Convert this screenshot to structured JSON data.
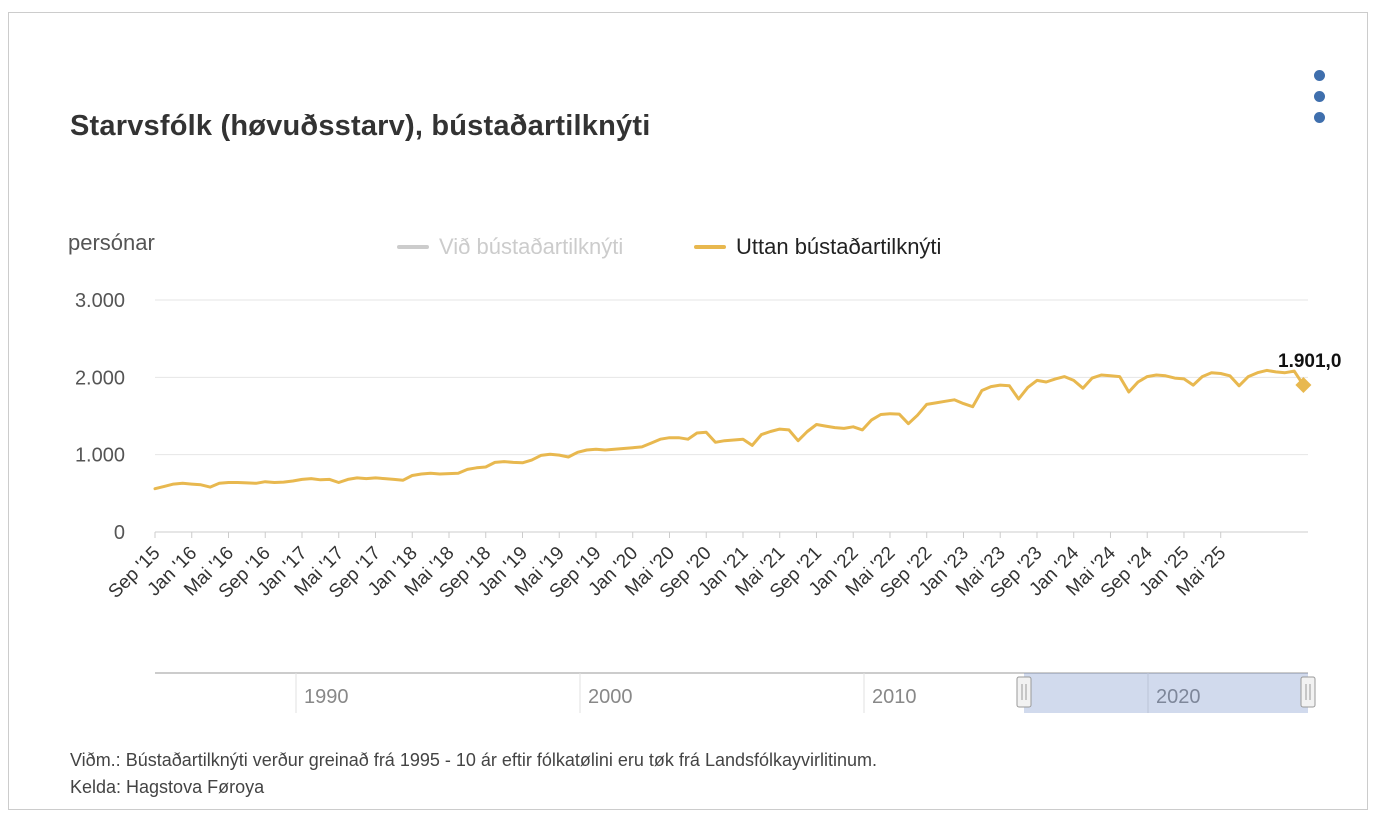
{
  "chart": {
    "title": "Starvsfólk (høvuðsstarv), bústaðartilknýti",
    "y_unit": "persónar",
    "menu_icon": "kebab-menu-icon",
    "legend": [
      {
        "name": "Við bústaðartilknýti",
        "visible": false,
        "color": "#cccccc"
      },
      {
        "name": "Uttan bústaðartilknýti",
        "visible": true,
        "color": "#e8b84f"
      }
    ],
    "last_value_label": "1.901,0",
    "navigator": {
      "decade_labels": [
        "1990",
        "2000",
        "2010",
        "2020"
      ],
      "selection": {
        "from": "Sep '15",
        "to": "Sep '25"
      }
    }
  },
  "chart_data": {
    "type": "line",
    "title": "Starvsfólk (høvuðsstarv), bústaðartilknýti",
    "ylabel": "persónar",
    "ylim": [
      0,
      3000
    ],
    "yticks": [
      0,
      1000,
      2000,
      3000
    ],
    "ytick_labels": [
      "0",
      "1.000",
      "2.000",
      "3.000"
    ],
    "grid": true,
    "legend_placement": "top-center",
    "x_start": "Sep '15",
    "x_tick_labels": [
      "Sep '15",
      "Jan '16",
      "Mai '16",
      "Sep '16",
      "Jan '17",
      "Mai '17",
      "Sep '17",
      "Jan '18",
      "Mai '18",
      "Sep '18",
      "Jan '19",
      "Mai '19",
      "Sep '19",
      "Jan '20",
      "Mai '20",
      "Sep '20",
      "Jan '21",
      "Mai '21",
      "Sep '21",
      "Jan '22",
      "Mai '22",
      "Sep '22",
      "Jan '23",
      "Mai '23",
      "Sep '23",
      "Jan '24",
      "Mai '24",
      "Sep '24",
      "Jan '25",
      "Mai '25"
    ],
    "series": [
      {
        "name": "Uttan bústaðartilknýti",
        "color": "#e8b84f",
        "values": [
          560,
          590,
          620,
          630,
          620,
          610,
          580,
          630,
          640,
          640,
          635,
          630,
          650,
          640,
          645,
          660,
          680,
          690,
          675,
          680,
          640,
          680,
          700,
          690,
          700,
          690,
          680,
          670,
          730,
          750,
          760,
          750,
          755,
          760,
          810,
          830,
          840,
          900,
          910,
          900,
          895,
          930,
          990,
          1005,
          995,
          970,
          1030,
          1060,
          1070,
          1060,
          1070,
          1080,
          1090,
          1100,
          1150,
          1200,
          1220,
          1220,
          1200,
          1280,
          1290,
          1160,
          1180,
          1190,
          1200,
          1120,
          1260,
          1300,
          1330,
          1320,
          1180,
          1300,
          1390,
          1370,
          1350,
          1340,
          1360,
          1320,
          1450,
          1520,
          1530,
          1525,
          1400,
          1510,
          1650,
          1670,
          1690,
          1710,
          1660,
          1620,
          1830,
          1880,
          1900,
          1890,
          1720,
          1870,
          1960,
          1940,
          1980,
          2010,
          1960,
          1860,
          1990,
          2030,
          2020,
          2010,
          1810,
          1940,
          2010,
          2030,
          2020,
          1990,
          1980,
          1900,
          2010,
          2060,
          2050,
          2020,
          1890,
          2010,
          2060,
          2090,
          2070,
          2060,
          2080,
          1901
        ]
      }
    ]
  },
  "footnotes": {
    "note": "Viðm.: Bústaðartilknýti verður greinað frá 1995 - 10 ár eftir fólkatølini eru tøk frá Landsfólkayvirlitinum.",
    "source": "Kelda: Hagstova Føroya"
  }
}
